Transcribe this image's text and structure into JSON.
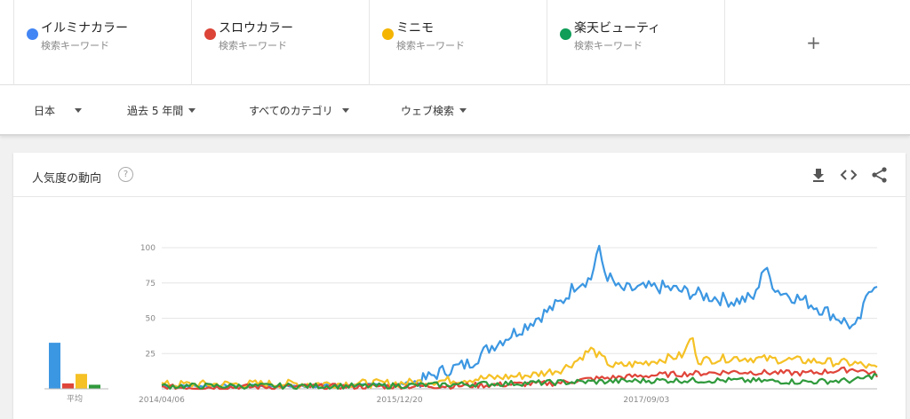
{
  "terms": [
    {
      "name": "イルミナカラー",
      "sub": "検索キーワード",
      "color": "#4285f4"
    },
    {
      "name": "スロウカラー",
      "sub": "検索キーワード",
      "color": "#db4437"
    },
    {
      "name": "ミニモ",
      "sub": "検索キーワード",
      "color": "#f4b400"
    },
    {
      "name": "楽天ビューティ",
      "sub": "検索キーワード",
      "color": "#0f9d58"
    }
  ],
  "add_label": "+",
  "filters": {
    "region": "日本",
    "period": "過去 5 年間",
    "category": "すべてのカテゴリ",
    "search_type": "ウェブ検索"
  },
  "card": {
    "title": "人気度の動向",
    "help": "?",
    "icons": [
      "download-icon",
      "embed-icon",
      "share-icon"
    ]
  },
  "chart_data": {
    "type": "line",
    "ylim": [
      0,
      100
    ],
    "yticks": [
      25,
      50,
      75,
      100
    ],
    "xtick_labels": [
      "2014/04/06",
      "2015/12/20",
      "2017/09/03"
    ],
    "average_label": "平均",
    "averages": [
      {
        "name": "イルミナカラー",
        "value": 34
      },
      {
        "name": "スロウカラー",
        "value": 4
      },
      {
        "name": "ミニモ",
        "value": 11
      },
      {
        "name": "楽天ビューティ",
        "value": 3
      }
    ],
    "series": [
      {
        "name": "イルミナカラー",
        "color": "#3c97e2",
        "keypoints": [
          [
            0,
            2
          ],
          [
            0.2,
            2
          ],
          [
            0.33,
            3
          ],
          [
            0.36,
            5
          ],
          [
            0.39,
            12
          ],
          [
            0.43,
            18
          ],
          [
            0.46,
            30
          ],
          [
            0.5,
            42
          ],
          [
            0.53,
            52
          ],
          [
            0.56,
            62
          ],
          [
            0.58,
            75
          ],
          [
            0.6,
            78
          ],
          [
            0.61,
            100
          ],
          [
            0.62,
            82
          ],
          [
            0.64,
            70
          ],
          [
            0.7,
            72
          ],
          [
            0.76,
            66
          ],
          [
            0.8,
            62
          ],
          [
            0.83,
            65
          ],
          [
            0.84,
            87
          ],
          [
            0.86,
            70
          ],
          [
            0.9,
            62
          ],
          [
            0.94,
            52
          ],
          [
            0.96,
            46
          ],
          [
            0.97,
            42
          ],
          [
            0.98,
            55
          ],
          [
            0.99,
            72
          ],
          [
            1.0,
            76
          ]
        ]
      },
      {
        "name": "スロウカラー",
        "color": "#e0453a",
        "keypoints": [
          [
            0,
            1
          ],
          [
            0.4,
            2
          ],
          [
            0.55,
            4
          ],
          [
            0.6,
            7
          ],
          [
            0.7,
            10
          ],
          [
            0.8,
            12
          ],
          [
            0.9,
            11
          ],
          [
            0.97,
            14
          ],
          [
            1.0,
            10
          ]
        ]
      },
      {
        "name": "ミニモ",
        "color": "#f5c125",
        "keypoints": [
          [
            0,
            3
          ],
          [
            0.33,
            4
          ],
          [
            0.4,
            6
          ],
          [
            0.47,
            8
          ],
          [
            0.52,
            10
          ],
          [
            0.56,
            14
          ],
          [
            0.58,
            20
          ],
          [
            0.6,
            28
          ],
          [
            0.63,
            16
          ],
          [
            0.67,
            18
          ],
          [
            0.71,
            22
          ],
          [
            0.73,
            24
          ],
          [
            0.74,
            38
          ],
          [
            0.75,
            20
          ],
          [
            0.8,
            22
          ],
          [
            0.9,
            20
          ],
          [
            0.97,
            18
          ],
          [
            1.0,
            14
          ]
        ]
      },
      {
        "name": "楽天ビューティ",
        "color": "#2f9a3c",
        "keypoints": [
          [
            0,
            2
          ],
          [
            0.3,
            2
          ],
          [
            0.4,
            3
          ],
          [
            0.5,
            4
          ],
          [
            0.6,
            5
          ],
          [
            0.7,
            6
          ],
          [
            0.8,
            6
          ],
          [
            0.9,
            5
          ],
          [
            0.97,
            6
          ],
          [
            1.0,
            10
          ]
        ]
      }
    ]
  }
}
